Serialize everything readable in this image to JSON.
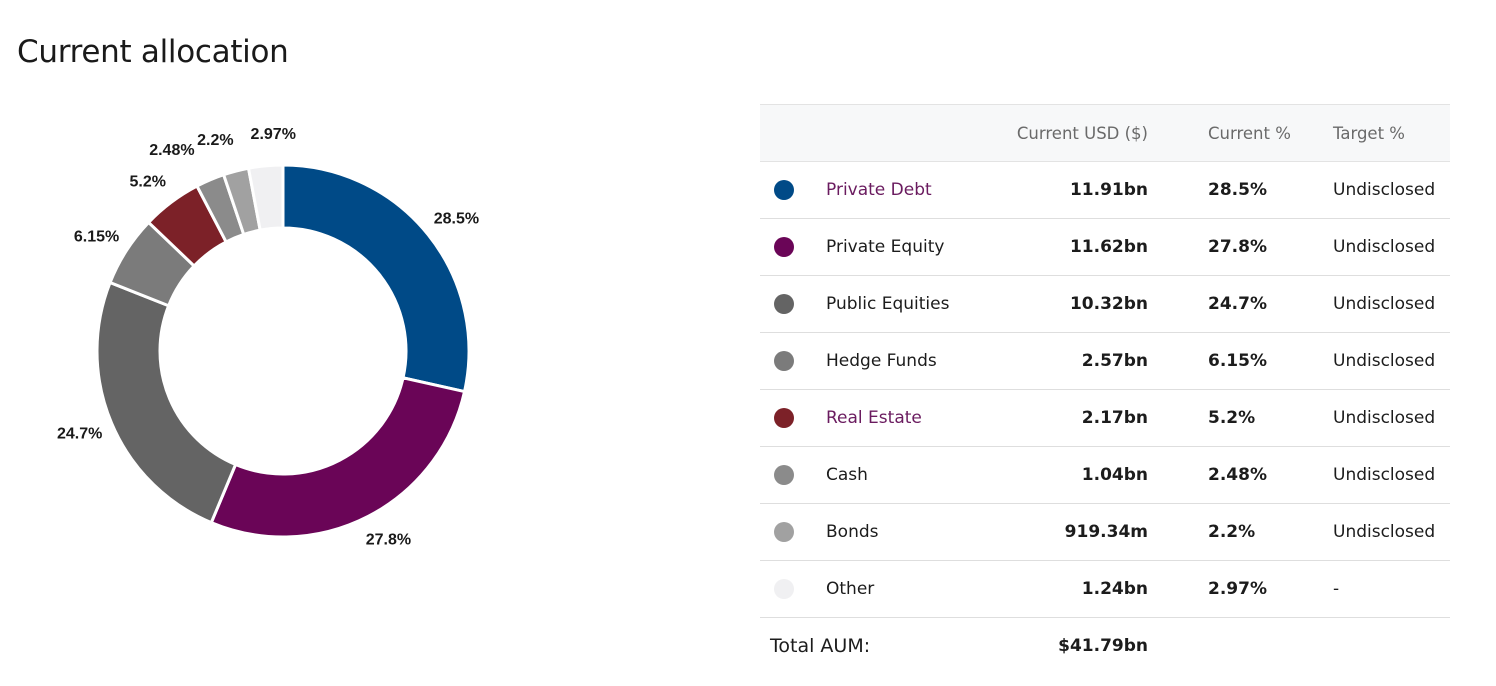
{
  "page": {
    "title": "Current allocation"
  },
  "table": {
    "headers": {
      "usd": "Current USD ($)",
      "current": "Current %",
      "target": "Target %"
    },
    "rows": [
      {
        "name": "Private Debt",
        "usd": "11.91bn",
        "current": "28.5%",
        "target": "Undisclosed",
        "color": "#004a87",
        "link": true
      },
      {
        "name": "Private Equity",
        "usd": "11.62bn",
        "current": "27.8%",
        "target": "Undisclosed",
        "color": "#6a0557",
        "link": false
      },
      {
        "name": "Public Equities",
        "usd": "10.32bn",
        "current": "24.7%",
        "target": "Undisclosed",
        "color": "#646464",
        "link": false
      },
      {
        "name": "Hedge Funds",
        "usd": "2.57bn",
        "current": "6.15%",
        "target": "Undisclosed",
        "color": "#7b7b7b",
        "link": false
      },
      {
        "name": "Real Estate",
        "usd": "2.17bn",
        "current": "5.2%",
        "target": "Undisclosed",
        "color": "#7c2128",
        "link": true
      },
      {
        "name": "Cash",
        "usd": "1.04bn",
        "current": "2.48%",
        "target": "Undisclosed",
        "color": "#8b8b8b",
        "link": false
      },
      {
        "name": "Bonds",
        "usd": "919.34m",
        "current": "2.2%",
        "target": "Undisclosed",
        "color": "#a1a1a1",
        "link": false
      },
      {
        "name": "Other",
        "usd": "1.24bn",
        "current": "2.97%",
        "target": "-",
        "color": "#f0f0f2",
        "link": false
      }
    ],
    "total_label": "Total AUM:",
    "total_value": "$41.79bn"
  },
  "chart_data": {
    "type": "pie",
    "categories": [
      "Private Debt",
      "Private Equity",
      "Public Equities",
      "Hedge Funds",
      "Real Estate",
      "Cash",
      "Bonds",
      "Other"
    ],
    "values": [
      28.5,
      27.8,
      24.7,
      6.15,
      5.2,
      2.48,
      2.2,
      2.97
    ],
    "labels": [
      "28.5%",
      "27.8%",
      "24.7%",
      "6.15%",
      "5.2%",
      "2.48%",
      "2.2%",
      "2.97%"
    ],
    "colors": [
      "#004a87",
      "#6a0557",
      "#646464",
      "#7b7b7b",
      "#7c2128",
      "#8b8b8b",
      "#a1a1a1",
      "#f0f0f2"
    ],
    "donut": true
  }
}
